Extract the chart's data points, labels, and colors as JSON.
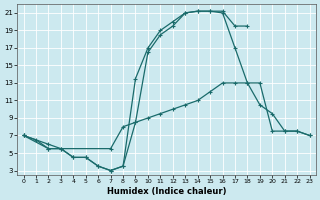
{
  "background_color": "#cce9ef",
  "grid_color": "#ffffff",
  "line_color": "#1a6b6b",
  "xlabel": "Humidex (Indice chaleur)",
  "xlim": [
    -0.5,
    23.5
  ],
  "ylim": [
    2.5,
    22
  ],
  "yticks": [
    3,
    5,
    7,
    9,
    11,
    13,
    15,
    17,
    19,
    21
  ],
  "xticks": [
    0,
    1,
    2,
    3,
    4,
    5,
    6,
    7,
    8,
    9,
    10,
    11,
    12,
    13,
    14,
    15,
    16,
    17,
    18,
    19,
    20,
    21,
    22,
    23
  ],
  "curve1_x": [
    0,
    1,
    2,
    3,
    4,
    5,
    6,
    7,
    8,
    9,
    10,
    11,
    12,
    13,
    14,
    15,
    16,
    17,
    18
  ],
  "curve1_y": [
    7,
    6.5,
    5.5,
    5.5,
    4.5,
    4.5,
    3.5,
    3.0,
    3.5,
    8.5,
    16.5,
    18.5,
    19.5,
    21.0,
    21.2,
    21.2,
    21.2,
    19.5,
    19.5
  ],
  "curve2_x": [
    0,
    2,
    3,
    4,
    5,
    6,
    7,
    8,
    9,
    10,
    11,
    12,
    13,
    14,
    15,
    16,
    17,
    18,
    19,
    20,
    21,
    22,
    23
  ],
  "curve2_y": [
    7,
    6.0,
    5.5,
    4.5,
    4.5,
    3.5,
    3.0,
    3.5,
    13.5,
    17.0,
    19.0,
    20.0,
    21.0,
    21.2,
    21.2,
    21.0,
    17.0,
    13.0,
    10.5,
    9.5,
    7.5,
    7.5,
    7.0
  ],
  "curve3_x": [
    0,
    2,
    7,
    8,
    9,
    10,
    11,
    12,
    13,
    14,
    15,
    16,
    17,
    18,
    19,
    20,
    21,
    22,
    23
  ],
  "curve3_y": [
    7,
    5.5,
    5.5,
    8.0,
    8.5,
    9.0,
    9.5,
    10.0,
    10.5,
    11.0,
    12.0,
    13.0,
    13.0,
    13.0,
    13.0,
    7.5,
    7.5,
    7.5,
    7.0
  ]
}
